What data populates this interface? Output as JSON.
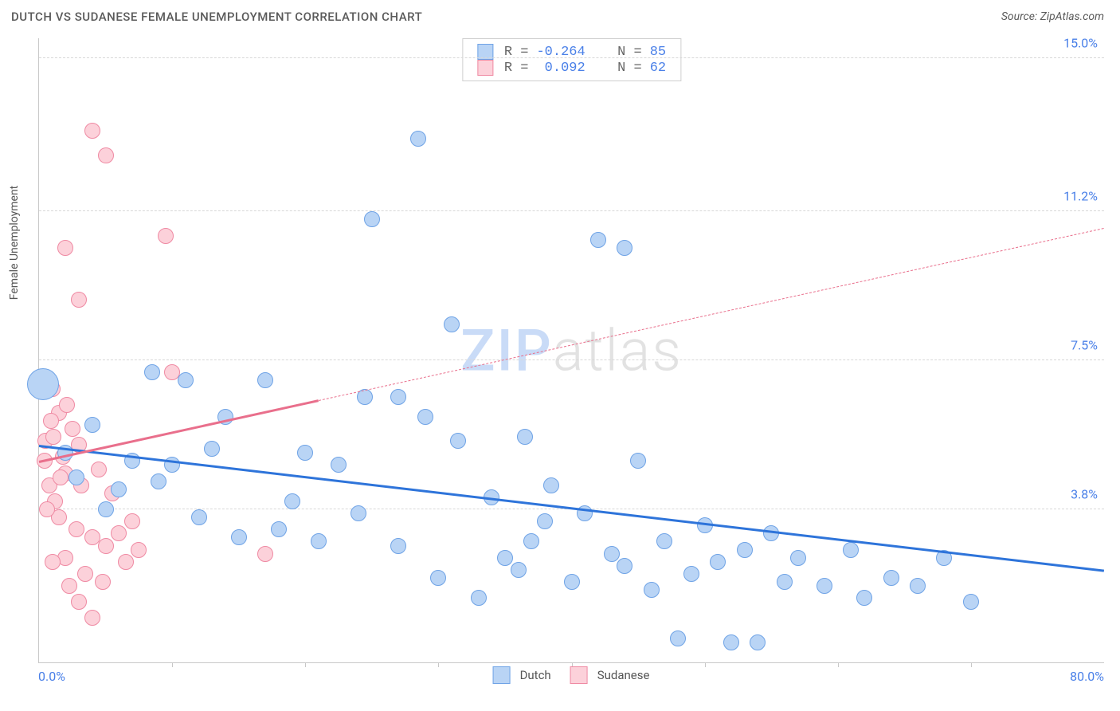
{
  "header": {
    "title": "DUTCH VS SUDANESE FEMALE UNEMPLOYMENT CORRELATION CHART",
    "source": "Source: ZipAtlas.com"
  },
  "chart": {
    "type": "scatter",
    "y_axis_label": "Female Unemployment",
    "watermark_part1": "ZIP",
    "watermark_part2": "atlas",
    "background_color": "#ffffff",
    "grid_color": "#d8d8d8",
    "axis_color": "#c8c8c8",
    "tick_label_color": "#4a80e8",
    "x_min": 0.0,
    "x_max": 80.0,
    "y_min": 0.0,
    "y_max": 15.5,
    "x_axis_min_label": "0.0%",
    "x_axis_max_label": "80.0%",
    "y_ticks": [
      {
        "v": 3.8,
        "label": "3.8%"
      },
      {
        "v": 7.5,
        "label": "7.5%"
      },
      {
        "v": 11.2,
        "label": "11.2%"
      },
      {
        "v": 15.0,
        "label": "15.0%"
      }
    ],
    "x_tick_positions": [
      10,
      20,
      30,
      40,
      50,
      60,
      70
    ],
    "legend": {
      "series_a_label": "Dutch",
      "series_b_label": "Sudanese"
    },
    "stats": {
      "r_label": "R =",
      "n_label": "N =",
      "a": {
        "r": "-0.264",
        "n": "85"
      },
      "b": {
        "r": " 0.092",
        "n": "62"
      }
    },
    "series_a": {
      "name": "Dutch",
      "fill": "#b9d4f5",
      "stroke": "#6fa3e6",
      "point_radius": 10,
      "trend": {
        "x0": 0,
        "y0": 5.4,
        "x1": 80,
        "y1": 2.3,
        "color": "#2e74da",
        "style": "solid",
        "x_extent": 80
      },
      "points": [
        {
          "x": 0.3,
          "y": 6.9,
          "r": 20
        },
        {
          "x": 28.5,
          "y": 13.0
        },
        {
          "x": 25.0,
          "y": 11.0
        },
        {
          "x": 42.0,
          "y": 10.5
        },
        {
          "x": 44.0,
          "y": 10.3
        },
        {
          "x": 31.0,
          "y": 8.4
        },
        {
          "x": 8.5,
          "y": 7.2
        },
        {
          "x": 11.0,
          "y": 7.0
        },
        {
          "x": 17.0,
          "y": 7.0
        },
        {
          "x": 14.0,
          "y": 6.1
        },
        {
          "x": 24.5,
          "y": 6.6
        },
        {
          "x": 27.0,
          "y": 6.6
        },
        {
          "x": 29.0,
          "y": 6.1
        },
        {
          "x": 31.5,
          "y": 5.5
        },
        {
          "x": 13.0,
          "y": 5.3
        },
        {
          "x": 4.0,
          "y": 5.9
        },
        {
          "x": 7.0,
          "y": 5.0
        },
        {
          "x": 10.0,
          "y": 4.9
        },
        {
          "x": 20.0,
          "y": 5.2
        },
        {
          "x": 22.5,
          "y": 4.9
        },
        {
          "x": 19.0,
          "y": 4.0
        },
        {
          "x": 2.0,
          "y": 5.2
        },
        {
          "x": 6.0,
          "y": 4.3
        },
        {
          "x": 9.0,
          "y": 4.5
        },
        {
          "x": 12.0,
          "y": 3.6
        },
        {
          "x": 15.0,
          "y": 3.1
        },
        {
          "x": 18.0,
          "y": 3.3
        },
        {
          "x": 21.0,
          "y": 3.0
        },
        {
          "x": 24.0,
          "y": 3.7
        },
        {
          "x": 27.0,
          "y": 2.9
        },
        {
          "x": 30.0,
          "y": 2.1
        },
        {
          "x": 33.0,
          "y": 1.6
        },
        {
          "x": 36.0,
          "y": 2.3
        },
        {
          "x": 34.0,
          "y": 4.1
        },
        {
          "x": 36.5,
          "y": 5.6
        },
        {
          "x": 38.0,
          "y": 3.5
        },
        {
          "x": 40.0,
          "y": 2.0
        },
        {
          "x": 35.0,
          "y": 2.6
        },
        {
          "x": 38.5,
          "y": 4.4
        },
        {
          "x": 41.0,
          "y": 3.7
        },
        {
          "x": 44.0,
          "y": 2.4
        },
        {
          "x": 45.0,
          "y": 5.0
        },
        {
          "x": 47.0,
          "y": 3.0
        },
        {
          "x": 48.0,
          "y": 0.6
        },
        {
          "x": 50.0,
          "y": 3.4
        },
        {
          "x": 51.0,
          "y": 2.5
        },
        {
          "x": 53.0,
          "y": 2.8
        },
        {
          "x": 54.0,
          "y": 0.5
        },
        {
          "x": 55.0,
          "y": 3.2
        },
        {
          "x": 57.0,
          "y": 2.6
        },
        {
          "x": 59.0,
          "y": 1.9
        },
        {
          "x": 61.0,
          "y": 2.8
        },
        {
          "x": 62.0,
          "y": 1.6
        },
        {
          "x": 64.0,
          "y": 2.1
        },
        {
          "x": 66.0,
          "y": 1.9
        },
        {
          "x": 68.0,
          "y": 2.6
        },
        {
          "x": 70.0,
          "y": 1.5
        },
        {
          "x": 2.8,
          "y": 4.6
        },
        {
          "x": 5.0,
          "y": 3.8
        },
        {
          "x": 37.0,
          "y": 3.0
        },
        {
          "x": 43.0,
          "y": 2.7
        },
        {
          "x": 46.0,
          "y": 1.8
        },
        {
          "x": 49.0,
          "y": 2.2
        },
        {
          "x": 52.0,
          "y": 0.5
        },
        {
          "x": 56.0,
          "y": 2.0
        }
      ]
    },
    "series_b": {
      "name": "Sudanese",
      "fill": "#fcd1da",
      "stroke": "#ef8aa3",
      "point_radius": 10,
      "trend": {
        "x0": 0,
        "y0": 5.0,
        "x1": 80,
        "y1": 10.8,
        "color": "#e96f8c",
        "style": "solid-then-dashed",
        "x_solid_until": 21
      },
      "points": [
        {
          "x": 4.0,
          "y": 13.2
        },
        {
          "x": 5.0,
          "y": 12.6
        },
        {
          "x": 9.5,
          "y": 10.6
        },
        {
          "x": 2.0,
          "y": 10.3
        },
        {
          "x": 3.0,
          "y": 9.0
        },
        {
          "x": 10.0,
          "y": 7.2
        },
        {
          "x": 1.0,
          "y": 6.8
        },
        {
          "x": 1.5,
          "y": 6.2
        },
        {
          "x": 2.5,
          "y": 5.8
        },
        {
          "x": 0.5,
          "y": 5.5
        },
        {
          "x": 1.8,
          "y": 5.1
        },
        {
          "x": 2.0,
          "y": 4.7
        },
        {
          "x": 3.2,
          "y": 4.4
        },
        {
          "x": 0.8,
          "y": 4.4
        },
        {
          "x": 1.2,
          "y": 4.0
        },
        {
          "x": 3.0,
          "y": 5.4
        },
        {
          "x": 4.5,
          "y": 4.8
        },
        {
          "x": 5.5,
          "y": 4.2
        },
        {
          "x": 1.5,
          "y": 3.6
        },
        {
          "x": 2.8,
          "y": 3.3
        },
        {
          "x": 4.0,
          "y": 3.1
        },
        {
          "x": 5.0,
          "y": 2.9
        },
        {
          "x": 2.0,
          "y": 2.6
        },
        {
          "x": 6.0,
          "y": 3.2
        },
        {
          "x": 3.5,
          "y": 2.2
        },
        {
          "x": 4.8,
          "y": 2.0
        },
        {
          "x": 1.0,
          "y": 2.5
        },
        {
          "x": 6.5,
          "y": 2.5
        },
        {
          "x": 2.3,
          "y": 1.9
        },
        {
          "x": 3.0,
          "y": 1.5
        },
        {
          "x": 4.0,
          "y": 1.1
        },
        {
          "x": 17.0,
          "y": 2.7
        },
        {
          "x": 7.0,
          "y": 3.5
        },
        {
          "x": 7.5,
          "y": 2.8
        },
        {
          "x": 0.6,
          "y": 3.8
        },
        {
          "x": 0.9,
          "y": 6.0
        },
        {
          "x": 1.6,
          "y": 4.6
        },
        {
          "x": 2.1,
          "y": 6.4
        },
        {
          "x": 0.4,
          "y": 5.0
        },
        {
          "x": 1.1,
          "y": 5.6
        }
      ]
    }
  }
}
